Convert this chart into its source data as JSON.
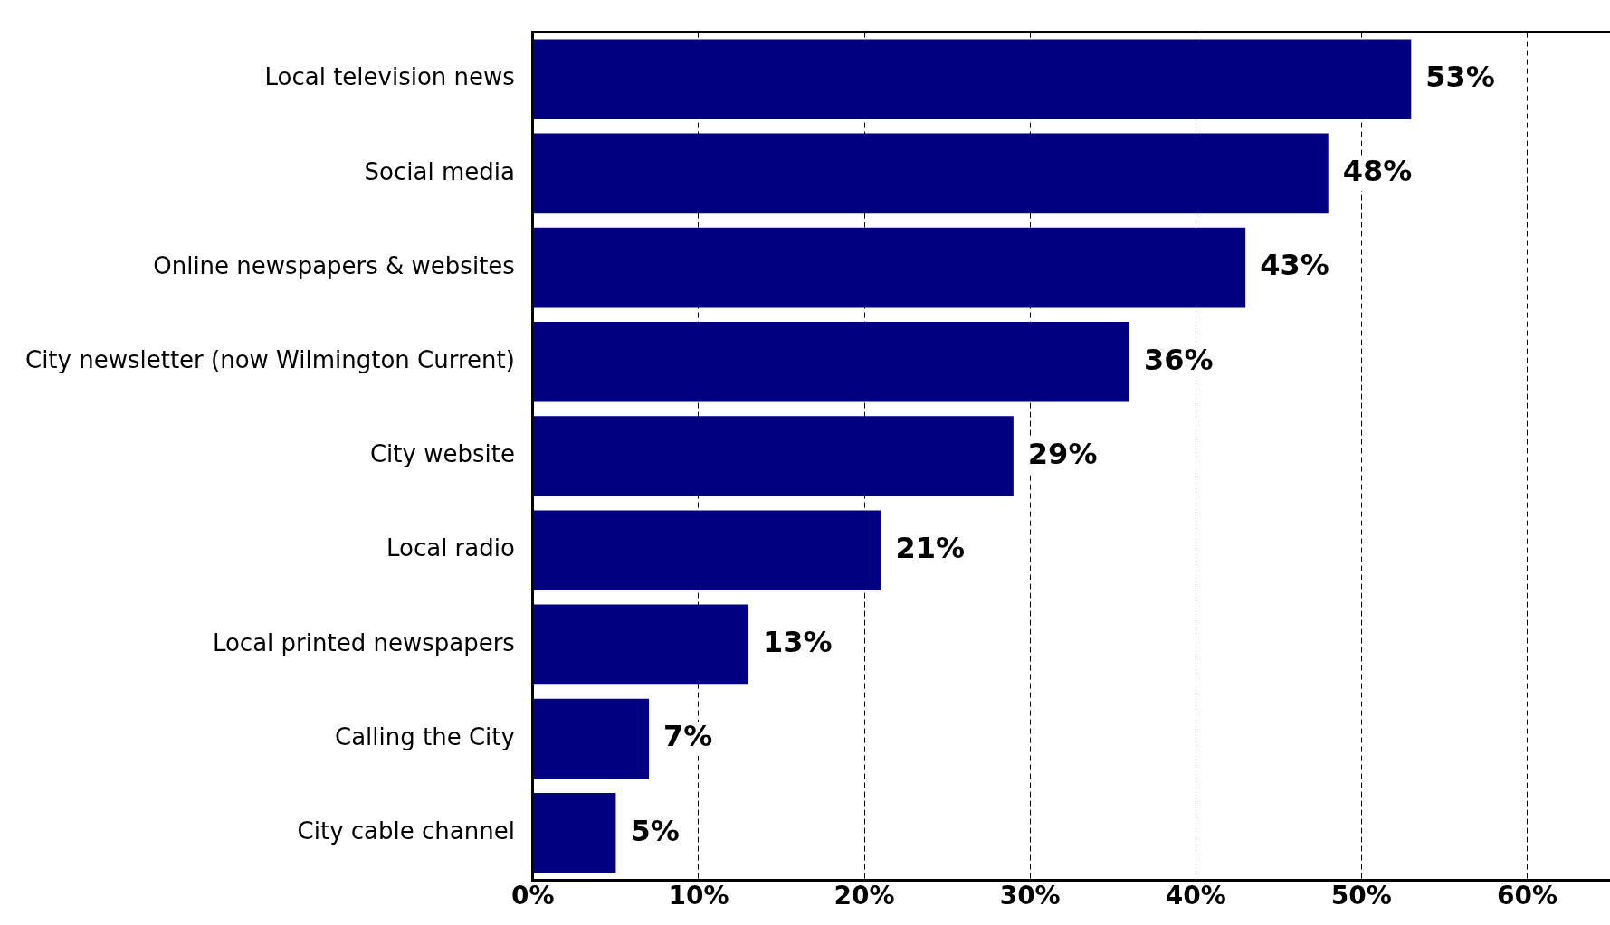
{
  "chart_data": {
    "type": "bar",
    "orientation": "horizontal",
    "categories": [
      "Local television news",
      "Social media",
      "Online newspapers & websites",
      "City newsletter (now Wilmington Current)",
      "City website",
      "Local radio",
      "Local printed newspapers",
      "Calling the City",
      "City cable channel"
    ],
    "values": [
      53,
      48,
      43,
      36,
      29,
      21,
      13,
      7,
      5
    ],
    "color": "#000080",
    "xlim": [
      0,
      65
    ],
    "xticks": [
      {
        "value": 0,
        "label": "0%"
      },
      {
        "value": 10,
        "label": "10%"
      },
      {
        "value": 20,
        "label": "20%"
      },
      {
        "value": 30,
        "label": "30%"
      },
      {
        "value": 40,
        "label": "40%"
      },
      {
        "value": 50,
        "label": "50%"
      },
      {
        "value": 60,
        "label": "60%"
      }
    ],
    "value_labels": [
      "53%",
      "48%",
      "43%",
      "36%",
      "29%",
      "21%",
      "13%",
      "7%",
      "5%"
    ],
    "grid": "x",
    "legend": false
  }
}
